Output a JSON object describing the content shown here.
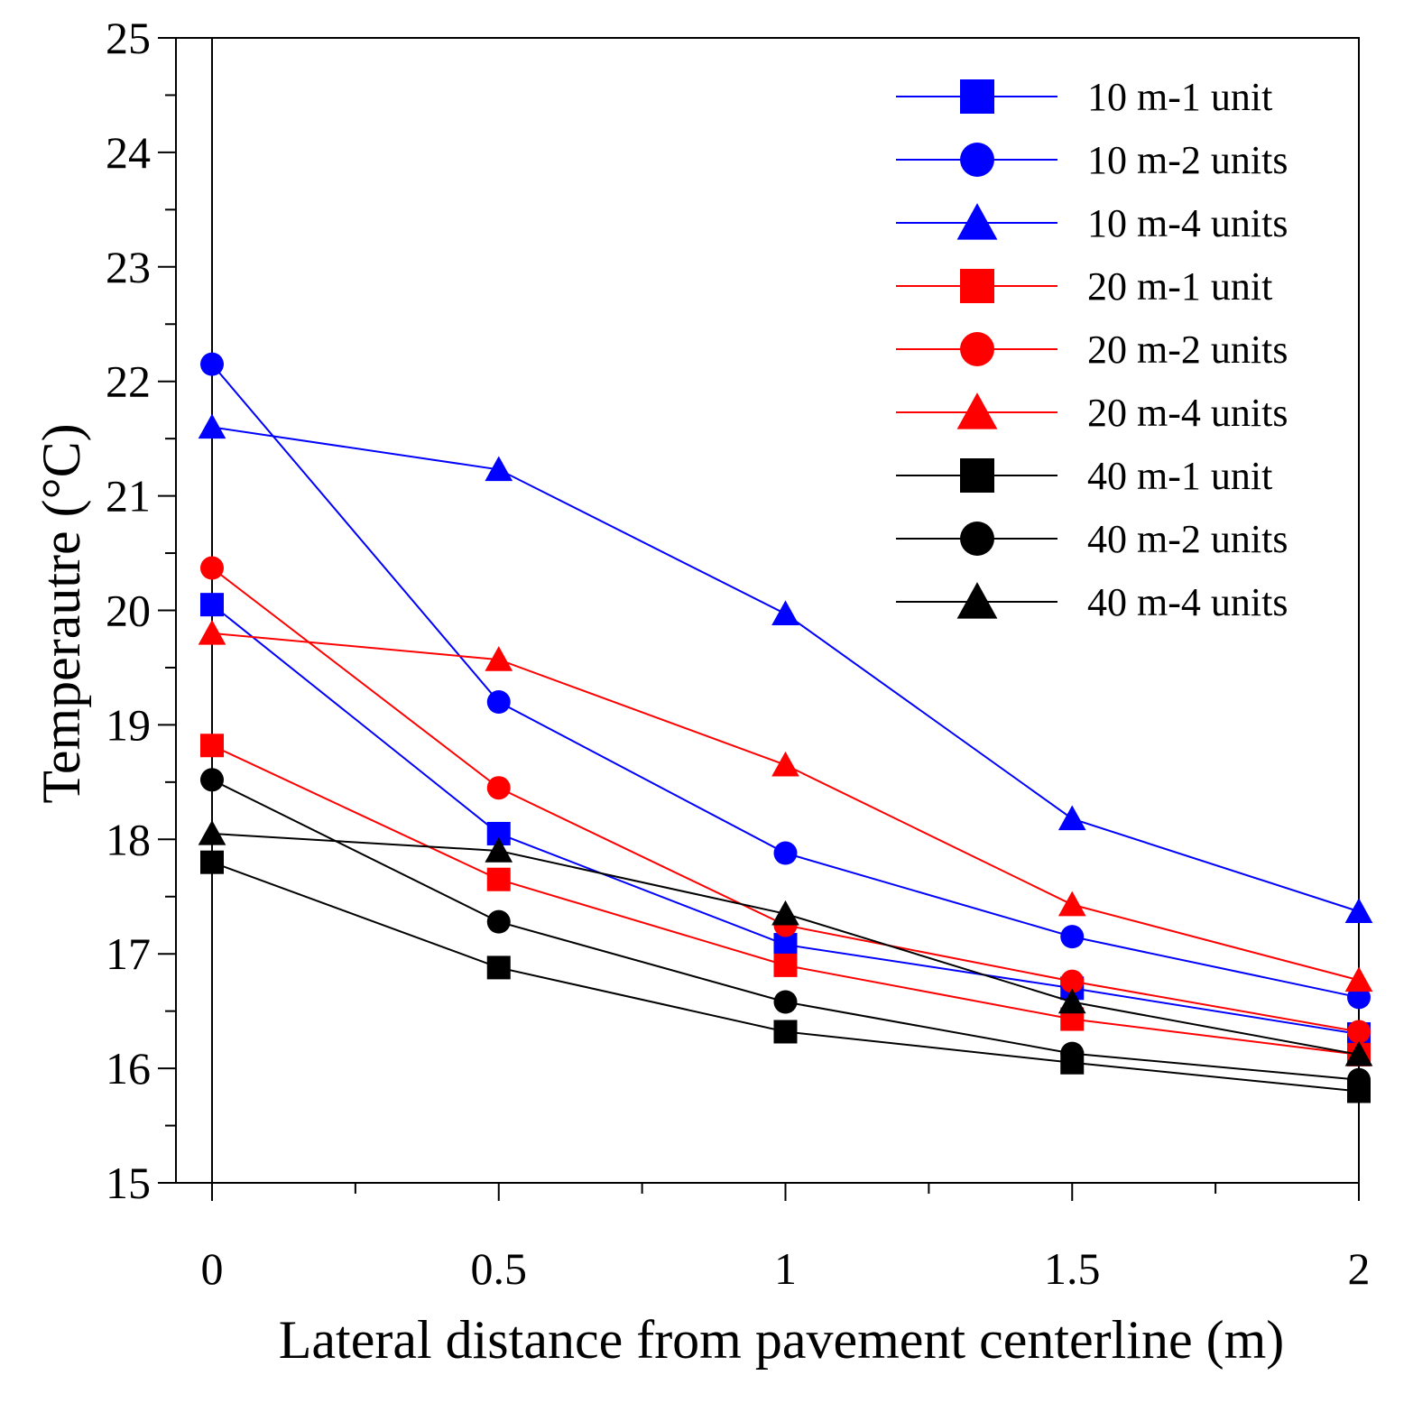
{
  "chart_data": {
    "type": "line",
    "title": "",
    "xlabel": "Lateral distance from pavement centerline (m)",
    "ylabel": "Temperautre (°C)",
    "xlim": [
      0,
      2
    ],
    "ylim": [
      15,
      25
    ],
    "grid": false,
    "legend_position": "top-right",
    "x_ticks": [
      0,
      0.5,
      1,
      1.5,
      2
    ],
    "x_tick_labels": [
      "0",
      "0.5",
      "1",
      "1.5",
      "2"
    ],
    "x_minor_ticks": [
      0.25,
      0.75,
      1.25,
      1.75
    ],
    "y_ticks": [
      15,
      16,
      17,
      18,
      19,
      20,
      21,
      22,
      23,
      24,
      25
    ],
    "y_tick_labels": [
      "15",
      "16",
      "17",
      "18",
      "19",
      "20",
      "21",
      "22",
      "23",
      "24",
      "25"
    ],
    "y_minor_ticks": [
      15.5,
      16.5,
      17.5,
      18.5,
      19.5,
      20.5,
      21.5,
      22.5,
      23.5,
      24.5
    ],
    "x": [
      0,
      0.5,
      1,
      1.5,
      2
    ],
    "series": [
      {
        "name": "10 m-1 unit",
        "color": "#0000ff",
        "marker": "square",
        "values": [
          20.05,
          18.05,
          17.08,
          16.7,
          16.3
        ]
      },
      {
        "name": "10 m-2 units",
        "color": "#0000ff",
        "marker": "circle",
        "values": [
          22.15,
          19.2,
          17.88,
          17.15,
          16.62
        ]
      },
      {
        "name": "10 m-4 units",
        "color": "#0000ff",
        "marker": "triangle",
        "values": [
          21.6,
          21.23,
          19.97,
          18.18,
          17.37
        ]
      },
      {
        "name": "20 m-1 unit",
        "color": "#ff0000",
        "marker": "square",
        "values": [
          18.82,
          17.65,
          16.9,
          16.43,
          16.12
        ]
      },
      {
        "name": "20 m-2 units",
        "color": "#ff0000",
        "marker": "circle",
        "values": [
          20.37,
          18.45,
          17.25,
          16.76,
          16.32
        ]
      },
      {
        "name": "20 m-4 units",
        "color": "#ff0000",
        "marker": "triangle",
        "values": [
          19.8,
          19.57,
          18.65,
          17.43,
          16.77
        ]
      },
      {
        "name": "40 m-1 unit",
        "color": "#000000",
        "marker": "square",
        "values": [
          17.8,
          16.88,
          16.32,
          16.05,
          15.8
        ]
      },
      {
        "name": "40 m-2 units",
        "color": "#000000",
        "marker": "circle",
        "values": [
          18.52,
          17.28,
          16.58,
          16.13,
          15.9
        ]
      },
      {
        "name": "40 m-4 units",
        "color": "#000000",
        "marker": "triangle",
        "values": [
          18.05,
          17.9,
          17.35,
          16.58,
          16.12
        ]
      }
    ]
  }
}
